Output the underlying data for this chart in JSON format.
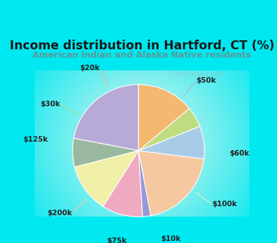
{
  "title": "Income distribution in Hartford, CT (%)",
  "subtitle": "American Indian and Alaska Native residents",
  "title_color": "#1a1a1a",
  "subtitle_color": "#5a9a9a",
  "bg_cyan": "#00e8f0",
  "bg_chart_center": "#ddf0e8",
  "bg_chart_edge": "#00e8f0",
  "watermark": "City-Data.com",
  "labels": [
    "$50k",
    "$60k",
    "$100k",
    "$10k",
    "$75k",
    "$200k",
    "$125k",
    "$30k",
    "$20k"
  ],
  "values": [
    22,
    7,
    12,
    10,
    2,
    20,
    8,
    5,
    14
  ],
  "colors": [
    "#b8aad8",
    "#9ab8a0",
    "#f0f0a8",
    "#f0aac0",
    "#9898d8",
    "#f5c8a0",
    "#a8cce8",
    "#c0dc80",
    "#f5b870"
  ],
  "startangle": 90
}
